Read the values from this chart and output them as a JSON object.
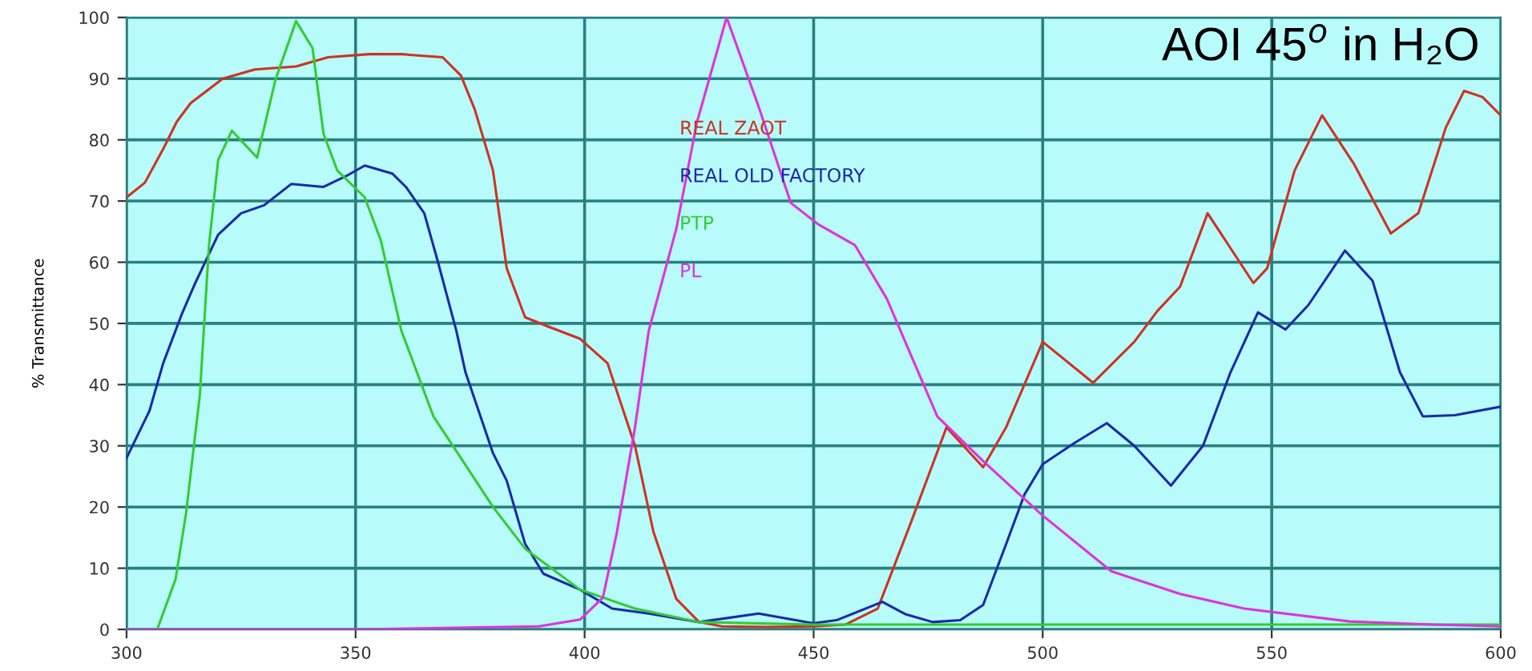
{
  "chart_data": {
    "type": "line",
    "ylabel": "% Transmittance",
    "annotations": [
      "AOI 45$^{o}$ in H₂O"
    ],
    "xlim": [
      300,
      600
    ],
    "xticks": [
      300,
      350,
      400,
      450,
      500,
      550,
      600
    ],
    "ylim": [
      0,
      100
    ],
    "yticks": [
      0,
      10,
      20,
      30,
      40,
      50,
      60,
      70,
      80,
      90,
      100
    ],
    "grid": true,
    "legend": "top",
    "marker": "none",
    "line_style": "solid",
    "series": [
      {
        "name": "REAL ZAOT",
        "color": "#cc3322",
        "x": [
          300,
          304,
          308,
          311,
          314,
          321,
          328,
          337,
          344,
          353,
          360,
          369,
          373,
          376,
          380,
          383,
          387,
          392,
          399,
          405,
          411,
          415,
          420,
          425,
          430,
          440,
          450,
          457,
          464,
          471,
          479,
          487,
          492,
          500,
          511,
          520,
          525,
          530,
          536,
          546,
          549,
          555,
          561,
          568,
          576,
          582,
          588,
          592,
          596,
          600
        ],
        "values": [
          70.6,
          73,
          78.5,
          83,
          86,
          90,
          91.5,
          92,
          93.5,
          94,
          94,
          93.5,
          90.5,
          85,
          75,
          59,
          51,
          49.5,
          47.5,
          43.5,
          30,
          16,
          5,
          1.2,
          0.5,
          0.4,
          0.5,
          0.8,
          3.4,
          17,
          33,
          26.5,
          33,
          47,
          40.3,
          47,
          52,
          56,
          68,
          56.6,
          59,
          75,
          84,
          76,
          64.7,
          68,
          82,
          88,
          87,
          84
        ]
      },
      {
        "name": "REAL OLD FACTORY",
        "color": "#1a2aaa",
        "x": [
          300,
          305,
          308,
          312,
          315,
          320,
          325,
          330,
          336,
          343,
          348,
          352,
          358,
          361,
          365,
          368,
          372,
          374,
          380,
          383,
          387,
          391,
          399,
          406,
          414,
          425,
          438,
          450,
          455,
          465,
          470,
          476,
          482,
          487,
          492,
          496,
          500,
          507,
          514,
          520,
          528,
          535,
          541,
          547,
          553,
          558,
          566,
          572,
          578,
          583,
          590,
          600
        ],
        "values": [
          28,
          35.7,
          43.5,
          51.4,
          56.6,
          64.5,
          68,
          69.3,
          72.8,
          72.3,
          74.1,
          75.8,
          74.5,
          72.3,
          68,
          60,
          48.8,
          42,
          28.8,
          24.3,
          14,
          9.1,
          6.5,
          3.4,
          2.6,
          1.2,
          2.6,
          1,
          1.5,
          4.5,
          2.5,
          1.2,
          1.5,
          4,
          13.9,
          22,
          27,
          30.5,
          33.7,
          30,
          23.5,
          30,
          42,
          51.8,
          49,
          53,
          61.9,
          57,
          42,
          34.8,
          35,
          36.4
        ]
      },
      {
        "name": "PTP",
        "color": "#33cc33",
        "x": [
          300,
          306.7,
          310.7,
          313,
          316,
          318,
          320,
          323,
          328.5,
          332.5,
          337,
          340.6,
          343,
          346,
          352,
          355.5,
          360,
          367,
          371.6,
          380,
          387,
          399,
          411,
          425,
          450,
          500,
          550,
          600
        ],
        "values": [
          0,
          0,
          8.2,
          19,
          38.3,
          62.8,
          76.7,
          81.5,
          77.1,
          89.8,
          99.4,
          95,
          81,
          75,
          70.6,
          63.6,
          48.8,
          34.8,
          29.6,
          20,
          13.2,
          6.5,
          3.4,
          1.2,
          0.8,
          0.8,
          0.8,
          0.8
        ]
      },
      {
        "name": "PL",
        "color": "#dd33dd",
        "x": [
          300,
          350,
          390,
          399,
          404,
          407,
          411,
          414,
          420,
          424.5,
          431,
          438,
          445,
          451,
          459,
          466,
          472,
          477,
          487,
          500,
          515,
          530,
          544,
          567,
          585,
          600
        ],
        "values": [
          0,
          0,
          0.5,
          1.6,
          5.2,
          15.7,
          33,
          48.8,
          65.4,
          82.8,
          100,
          85.4,
          69.7,
          66.2,
          62.8,
          54,
          43.5,
          34.8,
          27.5,
          18.6,
          9.5,
          5.8,
          3.4,
          1.3,
          0.8,
          0.5
        ]
      }
    ]
  }
}
